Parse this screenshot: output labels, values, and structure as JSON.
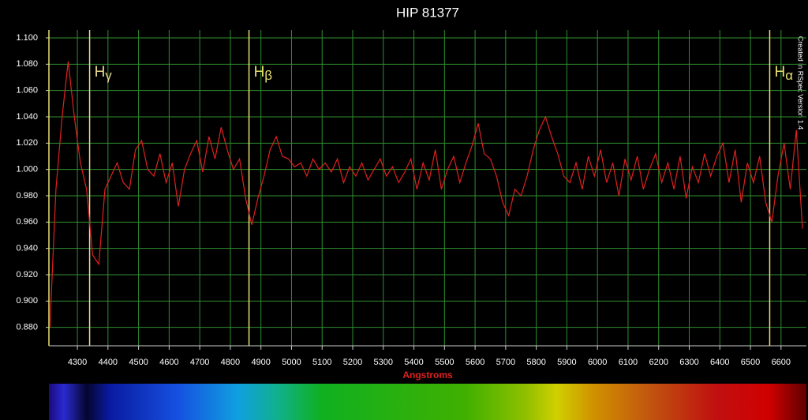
{
  "chart_data": {
    "type": "line",
    "title": "HIP 81377",
    "xlabel": "Angstroms",
    "watermark": "Created in RSpec Version 1.4",
    "color": "#e02020",
    "grid": true,
    "grid_color": "#2f8f2f",
    "xlim": [
      4207,
      6683
    ],
    "ylim": [
      0.866,
      1.106
    ],
    "xticks": [
      4300,
      4400,
      4500,
      4600,
      4700,
      4800,
      4900,
      5000,
      5100,
      5200,
      5300,
      5400,
      5500,
      5600,
      5700,
      5800,
      5900,
      6000,
      6100,
      6200,
      6300,
      6400,
      6500,
      6600
    ],
    "yticks": [
      {
        "value": 0.88,
        "label": "0.880"
      },
      {
        "value": 0.9,
        "label": "0.900"
      },
      {
        "value": 0.92,
        "label": "0.920"
      },
      {
        "value": 0.94,
        "label": "0.940"
      },
      {
        "value": 0.96,
        "label": "0.960"
      },
      {
        "value": 0.98,
        "label": "0.980"
      },
      {
        "value": 1.0,
        "label": "1.000"
      },
      {
        "value": 1.02,
        "label": "1.020"
      },
      {
        "value": 1.04,
        "label": "1.040"
      },
      {
        "value": 1.06,
        "label": "1.060"
      },
      {
        "value": 1.08,
        "label": "1.080"
      },
      {
        "value": 1.1,
        "label": "1.100"
      }
    ],
    "markers": [
      {
        "x": 4340,
        "label": "H",
        "sub": "γ",
        "color": "#e8d890"
      },
      {
        "x": 4861,
        "label": "H",
        "sub": "β",
        "color": "#e8e070"
      },
      {
        "x": 6563,
        "label": "H",
        "sub": "α",
        "color": "#e8e070"
      }
    ],
    "x": [
      4210,
      4230,
      4250,
      4270,
      4290,
      4310,
      4330,
      4350,
      4370,
      4390,
      4410,
      4430,
      4450,
      4470,
      4490,
      4510,
      4530,
      4550,
      4570,
      4590,
      4610,
      4630,
      4650,
      4670,
      4690,
      4710,
      4730,
      4750,
      4770,
      4790,
      4810,
      4830,
      4850,
      4870,
      4890,
      4910,
      4930,
      4950,
      4970,
      4990,
      5010,
      5030,
      5050,
      5070,
      5090,
      5110,
      5130,
      5150,
      5170,
      5190,
      5210,
      5230,
      5250,
      5270,
      5290,
      5310,
      5330,
      5350,
      5370,
      5390,
      5410,
      5430,
      5450,
      5470,
      5490,
      5510,
      5530,
      5550,
      5570,
      5590,
      5610,
      5630,
      5650,
      5670,
      5690,
      5710,
      5730,
      5750,
      5770,
      5790,
      5810,
      5830,
      5850,
      5870,
      5890,
      5910,
      5930,
      5950,
      5970,
      5990,
      6010,
      6030,
      6050,
      6070,
      6090,
      6110,
      6130,
      6150,
      6170,
      6190,
      6210,
      6230,
      6250,
      6270,
      6290,
      6310,
      6330,
      6350,
      6370,
      6390,
      6410,
      6430,
      6450,
      6470,
      6490,
      6510,
      6530,
      6550,
      6570,
      6590,
      6610,
      6630,
      6650,
      6670
    ],
    "values": [
      0.88,
      0.985,
      1.04,
      1.082,
      1.04,
      1.005,
      0.985,
      0.935,
      0.928,
      0.985,
      0.995,
      1.005,
      0.99,
      0.985,
      1.015,
      1.022,
      1.0,
      0.995,
      1.012,
      0.99,
      1.005,
      0.972,
      1.0,
      1.012,
      1.022,
      0.998,
      1.025,
      1.008,
      1.032,
      1.015,
      1.0,
      1.008,
      0.978,
      0.958,
      0.978,
      0.995,
      1.015,
      1.025,
      1.01,
      1.008,
      1.002,
      1.005,
      0.995,
      1.008,
      1.0,
      1.005,
      0.998,
      1.008,
      0.99,
      1.002,
      0.995,
      1.005,
      0.992,
      1.0,
      1.008,
      0.995,
      1.002,
      0.99,
      0.998,
      1.008,
      0.985,
      1.005,
      0.992,
      1.015,
      0.985,
      1.0,
      1.01,
      0.99,
      1.005,
      1.018,
      1.035,
      1.012,
      1.008,
      0.995,
      0.975,
      0.965,
      0.985,
      0.98,
      0.995,
      1.015,
      1.03,
      1.04,
      1.025,
      1.012,
      0.995,
      0.99,
      1.005,
      0.985,
      1.01,
      0.995,
      1.015,
      0.99,
      1.005,
      0.98,
      1.008,
      0.992,
      1.01,
      0.985,
      1.0,
      1.012,
      0.99,
      1.005,
      0.985,
      1.01,
      0.978,
      1.002,
      0.99,
      1.012,
      0.995,
      1.01,
      1.02,
      0.99,
      1.015,
      0.975,
      1.005,
      0.99,
      1.01,
      0.975,
      0.96,
      0.995,
      1.02,
      0.985,
      1.03,
      0.955
    ]
  }
}
